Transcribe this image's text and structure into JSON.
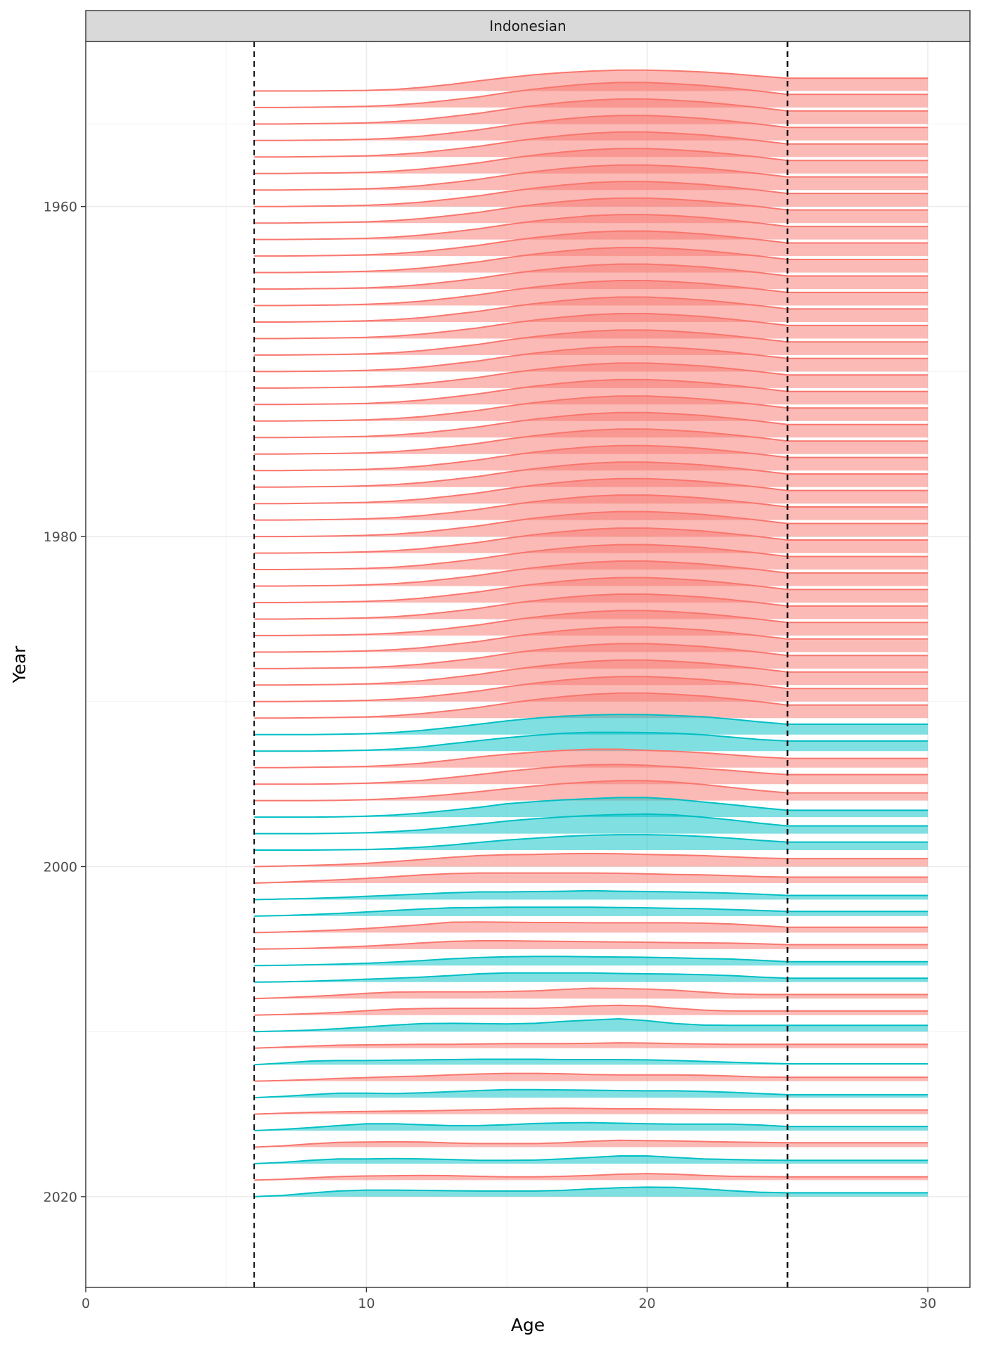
{
  "chart_data": {
    "type": "ridgeline",
    "facet": "Indonesian",
    "xlabel": "Age",
    "ylabel": "Year",
    "xlim": [
      0,
      31.5
    ],
    "ylim": [
      1950,
      2025.5
    ],
    "x_ticks": [
      0,
      10,
      20,
      30
    ],
    "y_ticks": [
      1960,
      1980,
      2000,
      2020
    ],
    "y_reversed": true,
    "grid": true,
    "vlines": [
      6,
      25
    ],
    "ridge_scale": 1.8,
    "colors": {
      "pink": "#F8766D",
      "teal": "#00BFC4"
    },
    "ages": [
      6,
      7,
      8,
      9,
      10,
      11,
      12,
      13,
      14,
      15,
      16,
      17,
      18,
      19,
      20,
      21,
      22,
      23,
      24,
      25,
      30
    ],
    "profile_stable": [
      0,
      0,
      0.01,
      0.02,
      0.04,
      0.08,
      0.15,
      0.25,
      0.36,
      0.5,
      0.62,
      0.72,
      0.8,
      0.84,
      0.84,
      0.8,
      0.74,
      0.65,
      0.55,
      0.44,
      0.44
    ],
    "ridges": [
      {
        "year": 1953,
        "group": "pink",
        "heights": [
          0,
          0,
          0,
          0.01,
          0.02,
          0.05,
          0.12,
          0.22,
          0.34,
          0.45,
          0.55,
          0.62,
          0.67,
          0.7,
          0.7,
          0.68,
          0.64,
          0.58,
          0.5,
          0.43,
          0.43
        ]
      },
      {
        "year": 1954,
        "group": "pink"
      },
      {
        "year": 1955,
        "group": "pink"
      },
      {
        "year": 1956,
        "group": "pink"
      },
      {
        "year": 1957,
        "group": "pink"
      },
      {
        "year": 1958,
        "group": "pink"
      },
      {
        "year": 1959,
        "group": "pink"
      },
      {
        "year": 1960,
        "group": "pink"
      },
      {
        "year": 1961,
        "group": "pink"
      },
      {
        "year": 1962,
        "group": "pink"
      },
      {
        "year": 1963,
        "group": "pink"
      },
      {
        "year": 1964,
        "group": "pink"
      },
      {
        "year": 1965,
        "group": "pink"
      },
      {
        "year": 1966,
        "group": "pink"
      },
      {
        "year": 1967,
        "group": "pink"
      },
      {
        "year": 1968,
        "group": "pink"
      },
      {
        "year": 1969,
        "group": "pink"
      },
      {
        "year": 1970,
        "group": "pink"
      },
      {
        "year": 1971,
        "group": "pink"
      },
      {
        "year": 1972,
        "group": "pink"
      },
      {
        "year": 1973,
        "group": "pink"
      },
      {
        "year": 1974,
        "group": "pink"
      },
      {
        "year": 1975,
        "group": "pink"
      },
      {
        "year": 1976,
        "group": "pink"
      },
      {
        "year": 1977,
        "group": "pink"
      },
      {
        "year": 1978,
        "group": "pink"
      },
      {
        "year": 1979,
        "group": "pink"
      },
      {
        "year": 1980,
        "group": "pink"
      },
      {
        "year": 1981,
        "group": "pink"
      },
      {
        "year": 1982,
        "group": "pink"
      },
      {
        "year": 1983,
        "group": "pink"
      },
      {
        "year": 1984,
        "group": "pink"
      },
      {
        "year": 1985,
        "group": "pink"
      },
      {
        "year": 1986,
        "group": "pink"
      },
      {
        "year": 1987,
        "group": "pink"
      },
      {
        "year": 1988,
        "group": "pink"
      },
      {
        "year": 1989,
        "group": "pink"
      },
      {
        "year": 1990,
        "group": "pink"
      },
      {
        "year": 1991,
        "group": "pink"
      },
      {
        "year": 1992,
        "group": "teal",
        "heights": [
          0,
          0,
          0,
          0.01,
          0.03,
          0.07,
          0.14,
          0.24,
          0.35,
          0.46,
          0.55,
          0.62,
          0.66,
          0.68,
          0.67,
          0.64,
          0.6,
          0.52,
          0.43,
          0.35,
          0.35
        ]
      },
      {
        "year": 1993,
        "group": "teal",
        "heights": [
          0,
          0,
          0,
          0.01,
          0.03,
          0.07,
          0.14,
          0.25,
          0.35,
          0.45,
          0.53,
          0.6,
          0.63,
          0.63,
          0.62,
          0.6,
          0.55,
          0.47,
          0.39,
          0.34,
          0.34
        ]
      },
      {
        "year": 1994,
        "group": "pink",
        "heights": [
          0,
          0,
          0.01,
          0.02,
          0.04,
          0.08,
          0.15,
          0.25,
          0.36,
          0.45,
          0.52,
          0.58,
          0.62,
          0.62,
          0.58,
          0.55,
          0.5,
          0.43,
          0.36,
          0.31,
          0.31
        ]
      },
      {
        "year": 1995,
        "group": "pink",
        "heights": [
          0,
          0,
          0,
          0.01,
          0.03,
          0.07,
          0.13,
          0.22,
          0.32,
          0.43,
          0.52,
          0.6,
          0.65,
          0.66,
          0.63,
          0.58,
          0.52,
          0.46,
          0.38,
          0.32,
          0.32
        ]
      },
      {
        "year": 1996,
        "group": "pink",
        "heights": [
          0,
          0,
          0,
          0.01,
          0.03,
          0.07,
          0.13,
          0.21,
          0.3,
          0.4,
          0.49,
          0.57,
          0.63,
          0.67,
          0.67,
          0.62,
          0.54,
          0.44,
          0.34,
          0.26,
          0.26
        ]
      },
      {
        "year": 1997,
        "group": "teal",
        "heights": [
          0,
          0,
          0,
          0.01,
          0.03,
          0.07,
          0.14,
          0.23,
          0.33,
          0.45,
          0.52,
          0.58,
          0.62,
          0.66,
          0.66,
          0.6,
          0.51,
          0.42,
          0.32,
          0.23,
          0.23
        ]
      },
      {
        "year": 1998,
        "group": "teal",
        "heights": [
          0,
          0,
          0,
          0.01,
          0.03,
          0.07,
          0.13,
          0.22,
          0.32,
          0.42,
          0.5,
          0.56,
          0.61,
          0.64,
          0.66,
          0.63,
          0.55,
          0.46,
          0.35,
          0.26,
          0.26
        ]
      },
      {
        "year": 1999,
        "group": "teal",
        "heights": [
          0,
          0,
          0,
          0.01,
          0.02,
          0.05,
          0.1,
          0.17,
          0.26,
          0.34,
          0.4,
          0.46,
          0.5,
          0.52,
          0.52,
          0.5,
          0.46,
          0.4,
          0.33,
          0.27,
          0.27
        ]
      },
      {
        "year": 2000,
        "group": "pink",
        "heights": [
          0,
          0.02,
          0.04,
          0.07,
          0.11,
          0.17,
          0.24,
          0.31,
          0.37,
          0.4,
          0.41,
          0.43,
          0.44,
          0.43,
          0.41,
          0.39,
          0.37,
          0.33,
          0.29,
          0.27,
          0.27
        ]
      },
      {
        "year": 2001,
        "group": "pink",
        "heights": [
          0,
          0.03,
          0.07,
          0.11,
          0.16,
          0.22,
          0.28,
          0.32,
          0.34,
          0.34,
          0.34,
          0.34,
          0.34,
          0.33,
          0.31,
          0.29,
          0.28,
          0.25,
          0.22,
          0.2,
          0.2
        ]
      },
      {
        "year": 2002,
        "group": "teal",
        "heights": [
          0,
          0.02,
          0.04,
          0.07,
          0.11,
          0.15,
          0.19,
          0.23,
          0.26,
          0.26,
          0.27,
          0.28,
          0.3,
          0.28,
          0.27,
          0.26,
          0.24,
          0.22,
          0.18,
          0.14,
          0.14
        ]
      },
      {
        "year": 2003,
        "group": "teal",
        "heights": [
          0,
          0.02,
          0.05,
          0.09,
          0.14,
          0.19,
          0.24,
          0.28,
          0.29,
          0.3,
          0.3,
          0.3,
          0.3,
          0.29,
          0.28,
          0.26,
          0.25,
          0.22,
          0.19,
          0.16,
          0.16
        ]
      },
      {
        "year": 2004,
        "group": "pink",
        "heights": [
          0,
          0.02,
          0.05,
          0.09,
          0.14,
          0.2,
          0.27,
          0.35,
          0.36,
          0.35,
          0.34,
          0.34,
          0.33,
          0.33,
          0.33,
          0.33,
          0.32,
          0.29,
          0.24,
          0.18,
          0.18
        ]
      },
      {
        "year": 2005,
        "group": "pink",
        "heights": [
          0,
          0.01,
          0.03,
          0.06,
          0.1,
          0.15,
          0.21,
          0.26,
          0.28,
          0.28,
          0.27,
          0.26,
          0.25,
          0.24,
          0.23,
          0.22,
          0.21,
          0.2,
          0.18,
          0.15,
          0.15
        ]
      },
      {
        "year": 2006,
        "group": "teal",
        "heights": [
          0,
          0.01,
          0.03,
          0.05,
          0.08,
          0.12,
          0.17,
          0.23,
          0.27,
          0.3,
          0.31,
          0.31,
          0.3,
          0.29,
          0.28,
          0.26,
          0.24,
          0.22,
          0.18,
          0.13,
          0.13
        ]
      },
      {
        "year": 2007,
        "group": "teal",
        "heights": [
          0,
          0.01,
          0.03,
          0.06,
          0.1,
          0.13,
          0.17,
          0.22,
          0.28,
          0.31,
          0.31,
          0.31,
          0.31,
          0.29,
          0.28,
          0.27,
          0.25,
          0.22,
          0.17,
          0.13,
          0.13
        ]
      },
      {
        "year": 2008,
        "group": "pink",
        "heights": [
          0,
          0.03,
          0.07,
          0.12,
          0.18,
          0.22,
          0.23,
          0.23,
          0.23,
          0.24,
          0.26,
          0.31,
          0.35,
          0.34,
          0.32,
          0.28,
          0.22,
          0.16,
          0.14,
          0.14,
          0.14
        ]
      },
      {
        "year": 2009,
        "group": "pink",
        "heights": [
          0,
          0.02,
          0.05,
          0.09,
          0.15,
          0.2,
          0.22,
          0.23,
          0.23,
          0.23,
          0.23,
          0.26,
          0.31,
          0.33,
          0.31,
          0.23,
          0.17,
          0.14,
          0.14,
          0.14,
          0.14
        ]
      },
      {
        "year": 2010,
        "group": "teal",
        "heights": [
          0,
          0.02,
          0.05,
          0.1,
          0.16,
          0.22,
          0.27,
          0.28,
          0.27,
          0.26,
          0.28,
          0.34,
          0.39,
          0.43,
          0.37,
          0.27,
          0.22,
          0.21,
          0.21,
          0.21,
          0.21
        ]
      },
      {
        "year": 2011,
        "group": "pink",
        "heights": [
          0,
          0.03,
          0.07,
          0.1,
          0.11,
          0.12,
          0.13,
          0.13,
          0.14,
          0.15,
          0.15,
          0.15,
          0.16,
          0.18,
          0.17,
          0.15,
          0.14,
          0.13,
          0.13,
          0.13,
          0.13
        ]
      },
      {
        "year": 2012,
        "group": "teal",
        "heights": [
          0,
          0.05,
          0.12,
          0.14,
          0.14,
          0.15,
          0.16,
          0.17,
          0.18,
          0.18,
          0.18,
          0.17,
          0.17,
          0.17,
          0.16,
          0.14,
          0.11,
          0.08,
          0.05,
          0.03,
          0.03
        ]
      },
      {
        "year": 2013,
        "group": "pink",
        "heights": [
          0,
          0.02,
          0.05,
          0.09,
          0.12,
          0.15,
          0.17,
          0.21,
          0.24,
          0.26,
          0.26,
          0.25,
          0.22,
          0.21,
          0.21,
          0.21,
          0.2,
          0.17,
          0.14,
          0.13,
          0.13
        ]
      },
      {
        "year": 2014,
        "group": "teal",
        "heights": [
          0,
          0.04,
          0.1,
          0.15,
          0.15,
          0.14,
          0.16,
          0.2,
          0.24,
          0.27,
          0.27,
          0.26,
          0.25,
          0.24,
          0.23,
          0.23,
          0.21,
          0.18,
          0.14,
          0.1,
          0.1
        ]
      },
      {
        "year": 2015,
        "group": "pink",
        "heights": [
          0,
          0.03,
          0.06,
          0.08,
          0.09,
          0.1,
          0.11,
          0.13,
          0.15,
          0.17,
          0.19,
          0.2,
          0.19,
          0.18,
          0.18,
          0.17,
          0.16,
          0.15,
          0.15,
          0.14,
          0.14
        ]
      },
      {
        "year": 2016,
        "group": "teal",
        "heights": [
          0,
          0.04,
          0.1,
          0.17,
          0.23,
          0.23,
          0.2,
          0.17,
          0.17,
          0.2,
          0.24,
          0.26,
          0.27,
          0.25,
          0.23,
          0.22,
          0.22,
          0.22,
          0.19,
          0.14,
          0.14
        ]
      },
      {
        "year": 2017,
        "group": "pink",
        "heights": [
          0,
          0.04,
          0.11,
          0.16,
          0.17,
          0.18,
          0.17,
          0.14,
          0.12,
          0.12,
          0.12,
          0.15,
          0.2,
          0.23,
          0.22,
          0.21,
          0.19,
          0.17,
          0.16,
          0.15,
          0.15
        ]
      },
      {
        "year": 2018,
        "group": "teal",
        "heights": [
          0,
          0.04,
          0.11,
          0.16,
          0.16,
          0.17,
          0.16,
          0.14,
          0.11,
          0.11,
          0.12,
          0.16,
          0.21,
          0.26,
          0.26,
          0.21,
          0.16,
          0.14,
          0.12,
          0.11,
          0.11
        ]
      },
      {
        "year": 2019,
        "group": "pink",
        "heights": [
          0,
          0.03,
          0.08,
          0.12,
          0.14,
          0.15,
          0.16,
          0.15,
          0.13,
          0.11,
          0.11,
          0.13,
          0.16,
          0.2,
          0.22,
          0.2,
          0.16,
          0.13,
          0.12,
          0.11,
          0.11
        ]
      },
      {
        "year": 2020,
        "group": "teal",
        "heights": [
          0,
          0.04,
          0.12,
          0.19,
          0.22,
          0.22,
          0.21,
          0.2,
          0.19,
          0.19,
          0.19,
          0.21,
          0.26,
          0.3,
          0.32,
          0.31,
          0.26,
          0.2,
          0.15,
          0.13,
          0.13
        ]
      }
    ]
  }
}
